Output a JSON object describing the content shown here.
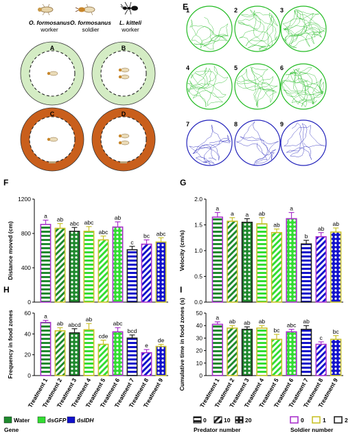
{
  "colors": {
    "water": "#1f8a2e",
    "dsgfp": "#33dd33",
    "dsidh": "#1111cc",
    "soldier0": "#aa33cc",
    "soldier1": "#c9c22a",
    "soldier2": "#222222",
    "arena_green_outer": "#d4ecc4",
    "arena_orange_outer": "#c95f1c",
    "track_green": "#22bb22",
    "track_blue": "#2222bb"
  },
  "top_labels": {
    "insects": [
      {
        "icon": "worker-termite-icon",
        "species": "O. formosanus",
        "caste": "worker"
      },
      {
        "icon": "soldier-termite-icon",
        "species": "O. formosanus",
        "caste": "soldier"
      },
      {
        "icon": "ant-icon",
        "species": "L. kitteli",
        "caste": "worker"
      }
    ],
    "arenas": [
      "A",
      "B",
      "C",
      "D"
    ],
    "panel_e": "E",
    "tracks": [
      "1",
      "2",
      "3",
      "4",
      "5",
      "6",
      "7",
      "8",
      "9"
    ]
  },
  "treatments": [
    "Treatment 1",
    "Treatment 2",
    "Treatment 3",
    "Treatment 4",
    "Treatment 5",
    "Treatment 6",
    "Treatment 7",
    "Treatment 8",
    "Treatment 9"
  ],
  "treatment_style": [
    {
      "gene": "water",
      "soldier": "soldier0",
      "pattern": "hstripe"
    },
    {
      "gene": "water",
      "soldier": "soldier1",
      "pattern": "diag"
    },
    {
      "gene": "water",
      "soldier": "soldier2",
      "pattern": "dots"
    },
    {
      "gene": "dsgfp",
      "soldier": "soldier1",
      "pattern": "hstripe"
    },
    {
      "gene": "dsgfp",
      "soldier": "soldier1",
      "pattern": "diag"
    },
    {
      "gene": "dsgfp",
      "soldier": "soldier0",
      "pattern": "dots"
    },
    {
      "gene": "dsidh",
      "soldier": "soldier2",
      "pattern": "hstripe"
    },
    {
      "gene": "dsidh",
      "soldier": "soldier0",
      "pattern": "diag"
    },
    {
      "gene": "dsidh",
      "soldier": "soldier1",
      "pattern": "dots"
    }
  ],
  "chart_data": [
    {
      "panel": "F",
      "type": "bar",
      "ylabel": "Distance moved (cm)",
      "ylim": [
        0,
        1200
      ],
      "yticks": [
        0,
        400,
        800,
        1200
      ],
      "values": [
        905,
        860,
        825,
        825,
        725,
        875,
        610,
        675,
        700
      ],
      "errors": [
        50,
        55,
        45,
        55,
        45,
        60,
        40,
        50,
        50
      ],
      "letters": [
        "a",
        "ab",
        "abc",
        "abc",
        "abc",
        "ab",
        "c",
        "bc",
        "abc"
      ]
    },
    {
      "panel": "G",
      "type": "bar",
      "ylabel": "Velocity (cm/s)",
      "ylim": [
        0,
        2.0
      ],
      "yticks": [
        "0.0",
        "0.5",
        "1.0",
        "1.5",
        "2.0"
      ],
      "values": [
        1.65,
        1.57,
        1.55,
        1.52,
        1.35,
        1.62,
        1.13,
        1.27,
        1.36
      ],
      "errors": [
        0.09,
        0.07,
        0.07,
        0.12,
        0.07,
        0.12,
        0.07,
        0.08,
        0.08
      ],
      "letters": [
        "a",
        "a",
        "a",
        "ab",
        "ab",
        "a",
        "b",
        "ab",
        "ab"
      ]
    },
    {
      "panel": "H",
      "type": "bar",
      "ylabel": "Frequency in food zones",
      "ylim": [
        0,
        60
      ],
      "yticks": [
        0,
        20,
        40,
        60
      ],
      "values": [
        51,
        43,
        41,
        44,
        30,
        42,
        36,
        22,
        28
      ],
      "errors": [
        2,
        3,
        4,
        6,
        4,
        4,
        3,
        3,
        2
      ],
      "letters": [
        "a",
        "ab",
        "abcd",
        "ab",
        "cde",
        "abc",
        "bcd",
        "e",
        "de"
      ]
    },
    {
      "panel": "I",
      "type": "bar",
      "ylabel": "Cumulative time in food zones (s)",
      "ylim": [
        0,
        50
      ],
      "yticks": [
        0,
        10,
        20,
        30,
        40,
        50
      ],
      "values": [
        41,
        38,
        37,
        38,
        29,
        35,
        37,
        25,
        29
      ],
      "errors": [
        2,
        2,
        2,
        2,
        4,
        2,
        3,
        2,
        3
      ],
      "letters": [
        "a",
        "ab",
        "ab",
        "ab",
        "bc",
        "abc",
        "ab",
        "c",
        "bc"
      ]
    }
  ],
  "legend": {
    "gene_title": "Gene",
    "predator_title": "Predator number",
    "soldier_title": "Soldier number",
    "gene_items": [
      {
        "key": "water",
        "label": "Water"
      },
      {
        "key": "dsgfp",
        "label_pre": "ds",
        "label_it": "GFP"
      },
      {
        "key": "dsidh",
        "label_pre": "ds",
        "label_it": "IDH"
      }
    ],
    "predator_items": [
      {
        "pattern": "hstripe",
        "label": "0"
      },
      {
        "pattern": "diag",
        "label": "10"
      },
      {
        "pattern": "dots",
        "label": "20"
      }
    ],
    "soldier_items": [
      {
        "key": "soldier0",
        "label": "0"
      },
      {
        "key": "soldier1",
        "label": "1"
      },
      {
        "key": "soldier2",
        "label": "2"
      }
    ]
  }
}
